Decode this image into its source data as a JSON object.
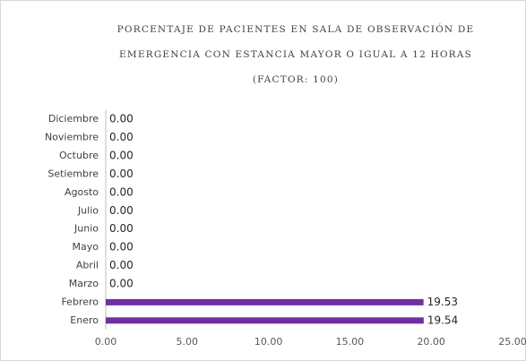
{
  "chart_data": {
    "type": "barh",
    "title": [
      "PORCENTAJE DE PACIENTES EN SALA DE OBSERVACIÓN DE",
      "EMERGENCIA CON ESTANCIA MAYOR O IGUAL A 12 HORAS",
      "(FACTOR: 100)"
    ],
    "categories": [
      "Enero",
      "Febrero",
      "Marzo",
      "Abril",
      "Mayo",
      "Junio",
      "Julio",
      "Agosto",
      "Setiembre",
      "Octubre",
      "Noviembre",
      "Diciembre"
    ],
    "values": [
      19.54,
      19.53,
      0,
      0,
      0,
      0,
      0,
      0,
      0,
      0,
      0,
      0
    ],
    "value_labels": [
      "19.54",
      "19.53",
      "0.00",
      "0.00",
      "0.00",
      "0.00",
      "0.00",
      "0.00",
      "0.00",
      "0.00",
      "0.00",
      "0.00"
    ],
    "color": "#7030a0",
    "xlim": [
      0,
      25
    ],
    "xticks": [
      {
        "value": 0,
        "label": "0.00"
      },
      {
        "value": 5,
        "label": "5.00"
      },
      {
        "value": 10,
        "label": "10.00"
      },
      {
        "value": 15,
        "label": "15.00"
      },
      {
        "value": 20,
        "label": "20.00"
      },
      {
        "value": 25,
        "label": "25.00"
      }
    ],
    "grid": false
  }
}
